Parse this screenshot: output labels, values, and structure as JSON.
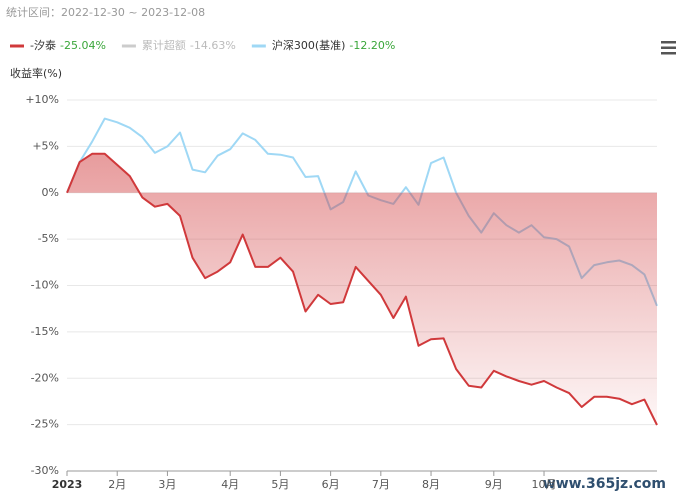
{
  "chart_data": {
    "type": "line",
    "period_label": "统计区间：2022-12-30 ~ 2023-12-08",
    "y_label": "收益率(%)",
    "categories": [
      "2023",
      null,
      null,
      null,
      "2月",
      null,
      null,
      null,
      "3月",
      null,
      null,
      null,
      null,
      "4月",
      null,
      null,
      null,
      "5月",
      null,
      null,
      null,
      "6月",
      null,
      null,
      null,
      "7月",
      null,
      null,
      null,
      "8月",
      null,
      null,
      null,
      null,
      "9月",
      null,
      null,
      null,
      "10月",
      null,
      null,
      null,
      null,
      null,
      null,
      null,
      null,
      null
    ],
    "series": [
      {
        "name": "-汐泰",
        "color": "#d0393b",
        "return": -25.04,
        "return_label": "-25.04%",
        "area": true,
        "values": [
          0,
          3.3,
          4.2,
          4.2,
          3,
          1.8,
          -0.5,
          -1.5,
          -1.2,
          -2.5,
          -7,
          -9.2,
          -8.5,
          -7.5,
          -4.5,
          -8,
          -8,
          -7,
          -8.5,
          -12.8,
          -11,
          -12,
          -11.8,
          -8,
          -9.5,
          -11,
          -13.5,
          -11.2,
          -16.5,
          -15.8,
          -15.7,
          -19,
          -20.8,
          -21,
          -19.2,
          -19.8,
          -20.3,
          -20.7,
          -20.3,
          -21,
          -21.6,
          -23.1,
          -22,
          -22,
          -22.2,
          -22.8,
          -22.3,
          -25.04
        ]
      },
      {
        "name": "沪深300(基准)",
        "color": "#9fd8f5",
        "return": -12.2,
        "return_label": "-12.20%",
        "area": false,
        "values": [
          0,
          3.3,
          5.5,
          8,
          7.6,
          7,
          6,
          4.3,
          5,
          6.5,
          2.5,
          2.2,
          4,
          4.7,
          6.4,
          5.7,
          4.2,
          4.1,
          3.8,
          1.7,
          1.8,
          -1.8,
          -1,
          2.3,
          -0.3,
          -0.8,
          -1.2,
          0.6,
          -1.3,
          3.2,
          3.8,
          0,
          -2.5,
          -4.3,
          -2.2,
          -3.5,
          -4.3,
          -3.5,
          -4.8,
          -5,
          -5.8,
          -9.2,
          -7.8,
          -7.5,
          -7.3,
          -7.8,
          -8.8,
          -12.2
        ]
      }
    ],
    "hidden_series": {
      "name": "累计超额",
      "color": "#cccccc",
      "return": -14.63,
      "return_label": "-14.63%"
    },
    "return_color": "#3aa63a",
    "ylim": [
      -30,
      10
    ],
    "yticks": [
      {
        "value": 10,
        "label": "+10%"
      },
      {
        "value": 5,
        "label": "+5%"
      },
      {
        "value": 0,
        "label": "0%"
      },
      {
        "value": -5,
        "label": "-5%"
      },
      {
        "value": -10,
        "label": "-10%"
      },
      {
        "value": -15,
        "label": "-15%"
      },
      {
        "value": -20,
        "label": "-20%"
      },
      {
        "value": -25,
        "label": "-25%"
      },
      {
        "value": -30,
        "label": "-30%"
      }
    ],
    "grid": true,
    "watermark": "www.365jz.com"
  }
}
